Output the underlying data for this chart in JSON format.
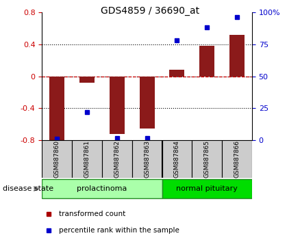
{
  "title": "GDS4859 / 36690_at",
  "samples": [
    "GSM887860",
    "GSM887861",
    "GSM887862",
    "GSM887863",
    "GSM887864",
    "GSM887865",
    "GSM887866"
  ],
  "bar_values": [
    -0.82,
    -0.08,
    -0.72,
    -0.65,
    0.08,
    0.38,
    0.52
  ],
  "dot_values": [
    1,
    22,
    2,
    2,
    78,
    88,
    96
  ],
  "bar_color": "#8B1A1A",
  "dot_color": "#0000CC",
  "ylim_left": [
    -0.8,
    0.8
  ],
  "ylim_right": [
    0,
    100
  ],
  "yticks_left": [
    -0.8,
    -0.4,
    0,
    0.4,
    0.8
  ],
  "ytick_labels_left": [
    "-0.8",
    "-0.4",
    "0",
    "0.4",
    "0.8"
  ],
  "yticks_right": [
    0,
    25,
    50,
    75,
    100
  ],
  "ytick_labels_right": [
    "0",
    "25",
    "50",
    "75",
    "100%"
  ],
  "groups": [
    {
      "label": "prolactinoma",
      "n_samples": 4,
      "color": "#AAFFAA",
      "edge_color": "#228B22"
    },
    {
      "label": "normal pituitary",
      "n_samples": 3,
      "color": "#00DD00",
      "edge_color": "#228B22"
    }
  ],
  "disease_state_label": "disease state",
  "legend_items": [
    {
      "label": "transformed count",
      "color": "#AA0000",
      "marker": "s"
    },
    {
      "label": "percentile rank within the sample",
      "color": "#0000CC",
      "marker": "s"
    }
  ],
  "grid_dotted_color": "#000000",
  "zero_line_color": "#CC0000",
  "background_color": "#FFFFFF",
  "sample_box_color": "#CCCCCC",
  "bar_width": 0.5,
  "title_fontsize": 10,
  "tick_fontsize": 8,
  "sample_fontsize": 6.5,
  "group_fontsize": 8,
  "legend_fontsize": 7.5,
  "disease_state_fontsize": 8
}
